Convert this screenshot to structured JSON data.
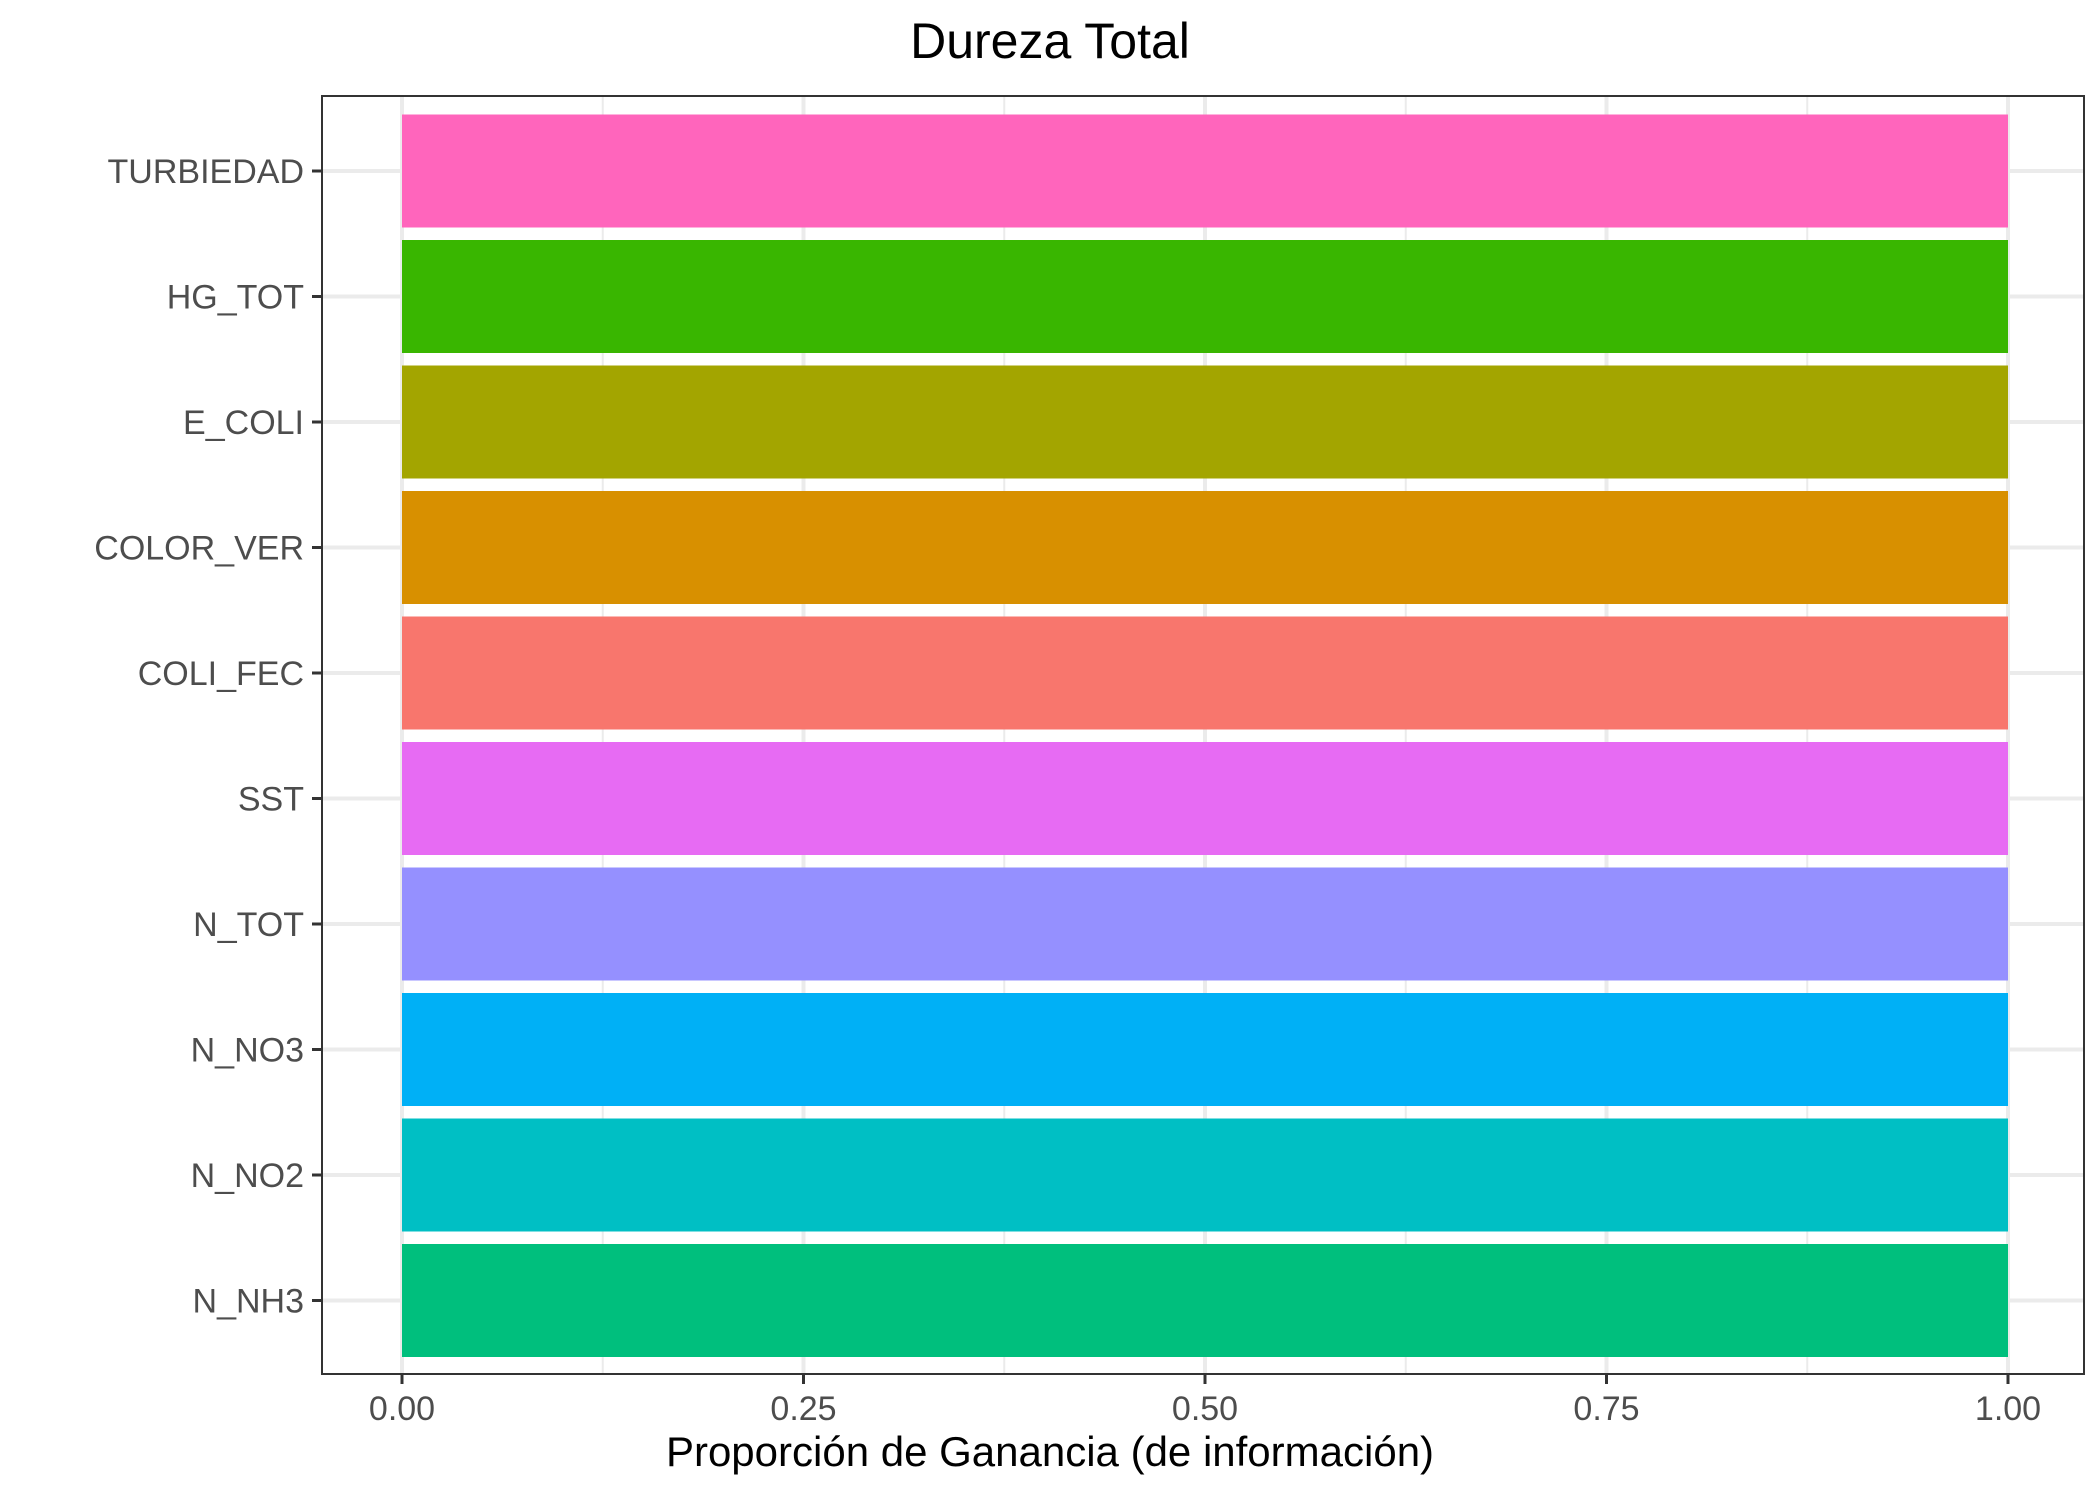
{
  "chart_data": {
    "type": "bar",
    "orientation": "horizontal",
    "title": "Dureza Total",
    "xlabel": "Proporción de Ganancia (de información)",
    "ylabel": "",
    "xlim": [
      0,
      1
    ],
    "x_ticks": [
      {
        "value": 0.0,
        "label": "0.00"
      },
      {
        "value": 0.25,
        "label": "0.25"
      },
      {
        "value": 0.5,
        "label": "0.50"
      },
      {
        "value": 0.75,
        "label": "0.75"
      },
      {
        "value": 1.0,
        "label": "1.00"
      }
    ],
    "categories": [
      "TURBIEDAD",
      "HG_TOT",
      "E_COLI",
      "COLOR_VER",
      "COLI_FEC",
      "SST",
      "N_TOT",
      "N_NO3",
      "N_NO2",
      "N_NH3"
    ],
    "values": [
      1,
      1,
      1,
      1,
      1,
      1,
      1,
      1,
      1,
      1
    ],
    "colors": [
      "#FF65BC",
      "#39B600",
      "#A3A500",
      "#D89000",
      "#F8766D",
      "#E76BF3",
      "#9590FF",
      "#00B0F6",
      "#00BFC4",
      "#00BF7D"
    ],
    "grid": true,
    "legend": "none",
    "panel_border": "#333333",
    "grid_color": "#ebebeb"
  }
}
